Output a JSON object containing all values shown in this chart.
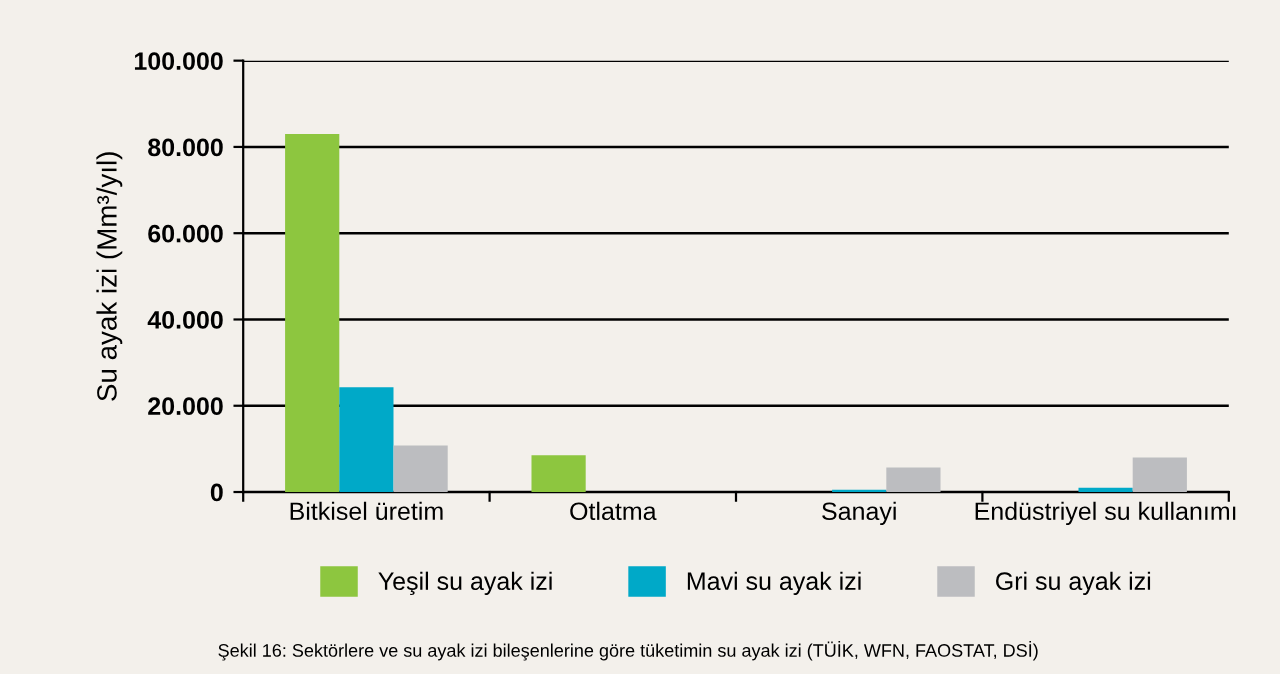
{
  "chart_data": {
    "type": "bar",
    "ylabel": "Su ayak izi (Mm³/yıl)",
    "categories": [
      "Bitkisel üretim",
      "Otlatma",
      "Sanayi",
      "Endüstriyel su kullanımı"
    ],
    "series": [
      {
        "name": "Yeşil su ayak izi",
        "color": "#8dc63f",
        "values": [
          83000,
          8500,
          0,
          0
        ]
      },
      {
        "name": "Mavi su ayak izi",
        "color": "#00a9c8",
        "values": [
          24300,
          0,
          500,
          1000
        ]
      },
      {
        "name": "Gri su ayak izi",
        "color": "#bcbdc0",
        "values": [
          10800,
          0,
          5700,
          8000
        ]
      }
    ],
    "ylim": [
      0,
      100000
    ],
    "yticks": [
      {
        "value": 0,
        "label": "0"
      },
      {
        "value": 20000,
        "label": "20.000"
      },
      {
        "value": 40000,
        "label": "40.000"
      },
      {
        "value": 60000,
        "label": "60.000"
      },
      {
        "value": 80000,
        "label": "80.000"
      },
      {
        "value": 100000,
        "label": "100.000"
      }
    ],
    "grid": "y",
    "legend": "bottom",
    "annotations": [
      "Şekil 16: Sektörlere ve su ayak izi bileşenlerine göre tüketimin su ayak izi (TÜİK, WFN, FAOSTAT, DSİ)"
    ]
  }
}
